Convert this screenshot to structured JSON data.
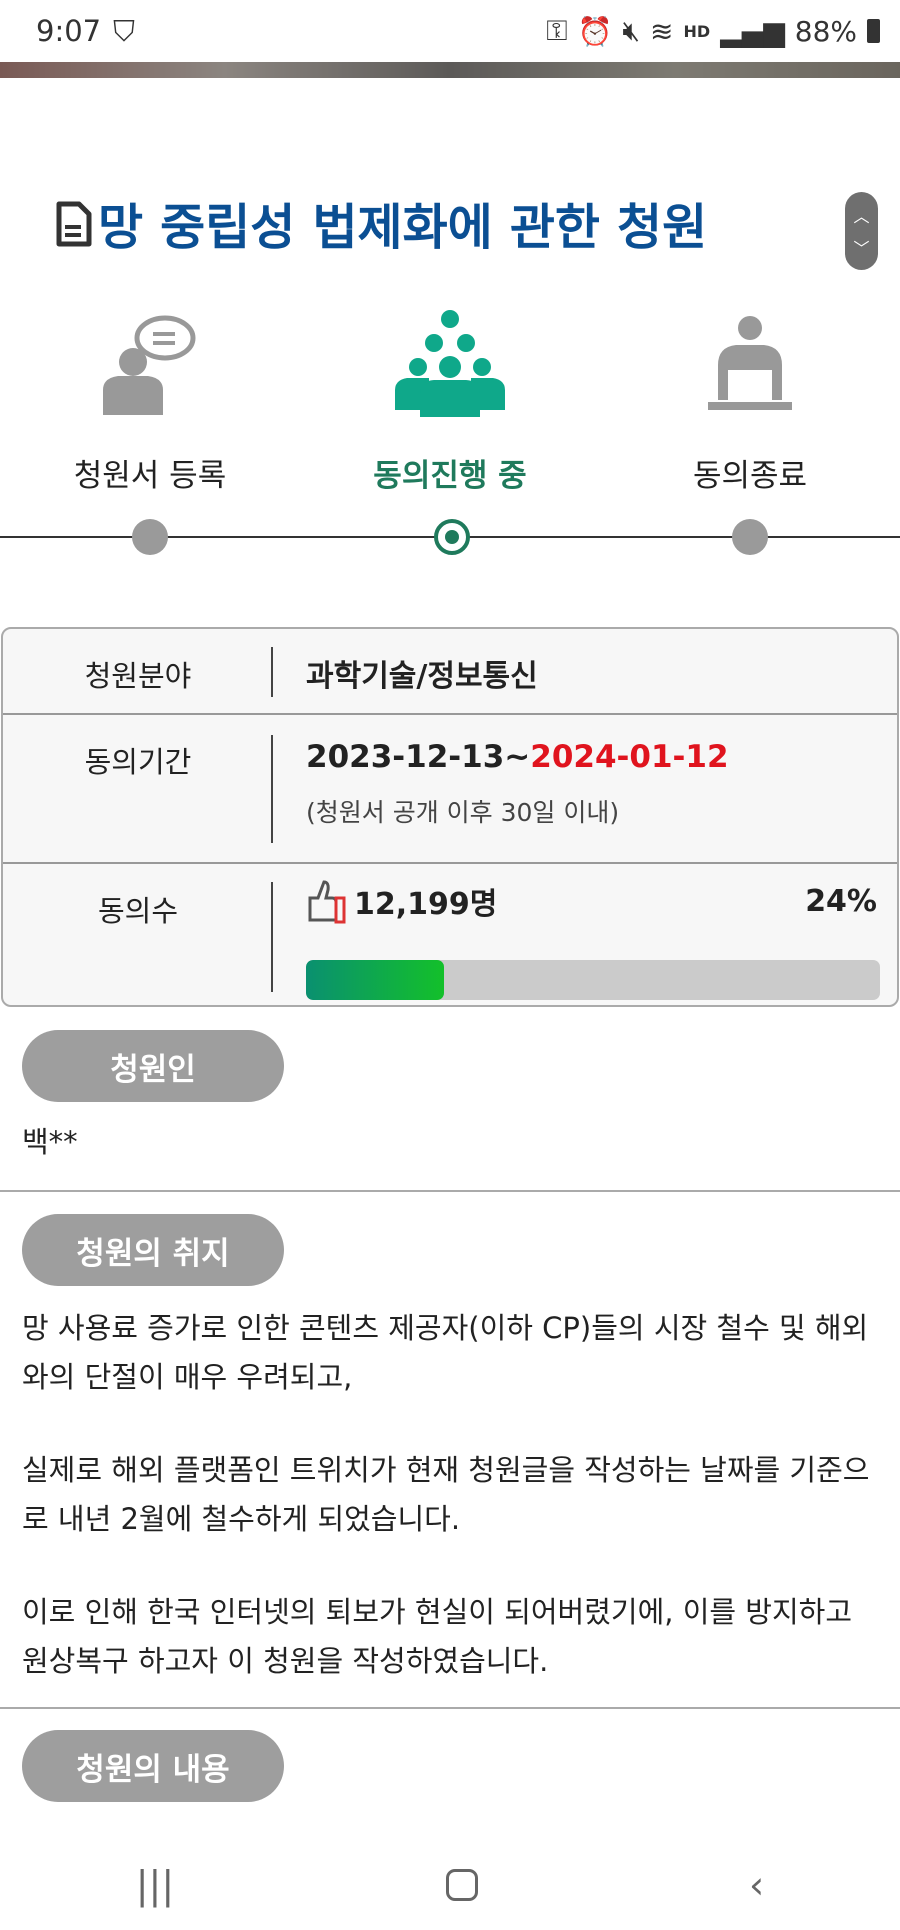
{
  "status_bar": {
    "time": "9:07",
    "battery": "88%",
    "hd_label": "HD"
  },
  "title": "망 중립성 법제화에 관한 청원",
  "steps": [
    {
      "label": "청원서 등록",
      "state": "done"
    },
    {
      "label": "동의진행 중",
      "state": "active"
    },
    {
      "label": "동의종료",
      "state": "pending"
    }
  ],
  "table": {
    "field_label": "청원분야",
    "field_value": "과학기술/정보통신",
    "period_label": "동의기간",
    "period_start": "2023-12-13~",
    "period_end": "2024-01-12",
    "period_note": "(청원서 공개 이후 30일 이내)",
    "count_label": "동의수",
    "count_value": "12,199명",
    "percent": "24%",
    "progress": 0.24
  },
  "petitioner": {
    "label": "청원인",
    "value": "백**"
  },
  "purpose": {
    "label": "청원의 취지",
    "paragraphs": [
      "망 사용료 증가로 인한 콘텐츠 제공자(이하 CP)들의 시장 철수 및 해외와의 단절이 매우 우려되고,",
      "실제로 해외 플랫폼인 트위치가 현재 청원글을 작성하는 날짜를 기준으로 내년 2월에 철수하게 되었습니다.",
      "이로 인해 한국 인터넷의 퇴보가 현실이 되어버렸기에, 이를 방지하고 원상복구 하고자 이 청원을 작성하였습니다."
    ]
  },
  "content": {
    "label": "청원의 내용"
  },
  "colors": {
    "title": "#0b4f93",
    "active": "#1f7a5c",
    "deadline": "#e0141e",
    "pill": "#9e9e9e"
  }
}
